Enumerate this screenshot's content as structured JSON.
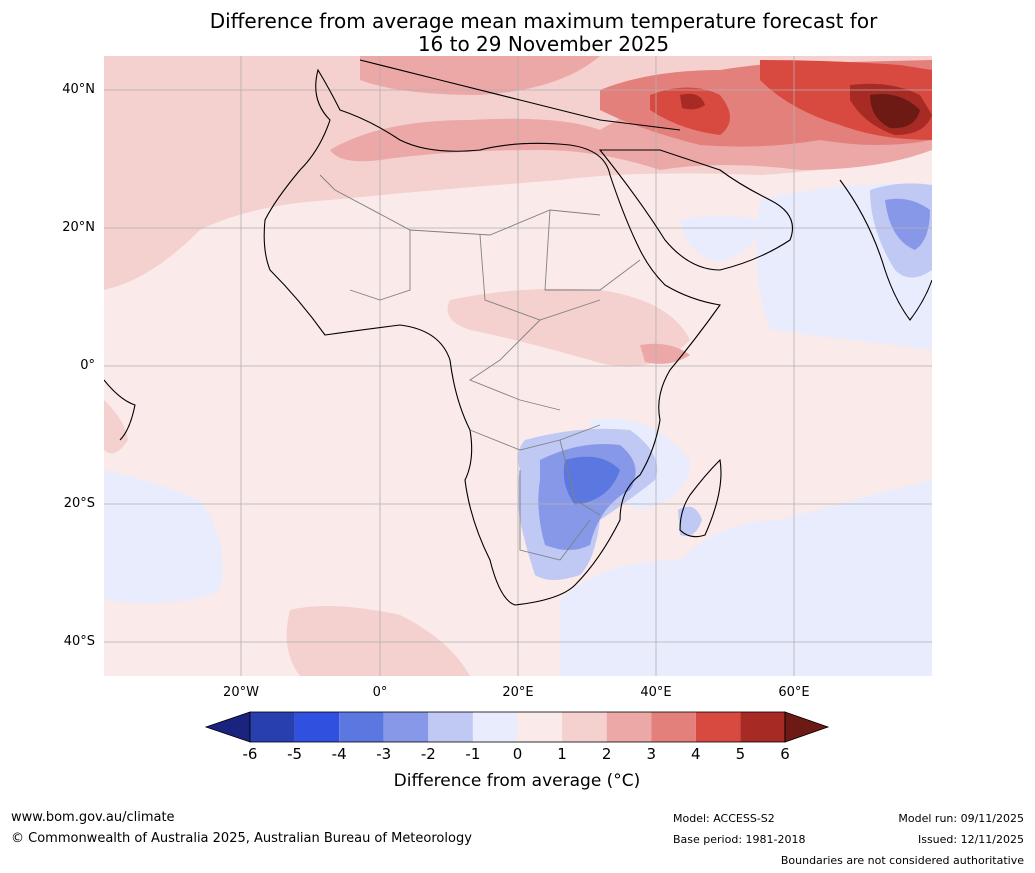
{
  "title": {
    "line1": "Difference from average mean maximum temperature forecast for",
    "line2": "16 to 29 November 2025"
  },
  "map": {
    "lat_labels": [
      "40°N",
      "20°N",
      "0°",
      "20°S",
      "40°S"
    ],
    "lon_labels": [
      "20°W",
      "0°",
      "20°E",
      "40°E",
      "60°E"
    ]
  },
  "colorbar": {
    "ticks": [
      "-6",
      "-5",
      "-4",
      "-3",
      "-2",
      "-1",
      "0",
      "1",
      "2",
      "3",
      "4",
      "5",
      "6"
    ],
    "colors": [
      "#1a237e",
      "#283fb0",
      "#3050e0",
      "#5a78e0",
      "#8898e8",
      "#c0c8f4",
      "#e8ecfc",
      "#fbeaea",
      "#f4d0ce",
      "#eca8a6",
      "#e4807c",
      "#d84a40",
      "#a82a24",
      "#6e1a14"
    ],
    "label": "Difference from average (°C)"
  },
  "footer": {
    "website": "www.bom.gov.au/climate",
    "copyright": "© Commonwealth of Australia 2025, Australian Bureau of Meteorology",
    "model": "Model: ACCESS-S2",
    "base_period": "Base period: 1981-2018",
    "model_run": "Model run: 09/11/2025",
    "issued": "Issued: 12/11/2025",
    "disclaimer": "Boundaries are not considered authoritative"
  }
}
